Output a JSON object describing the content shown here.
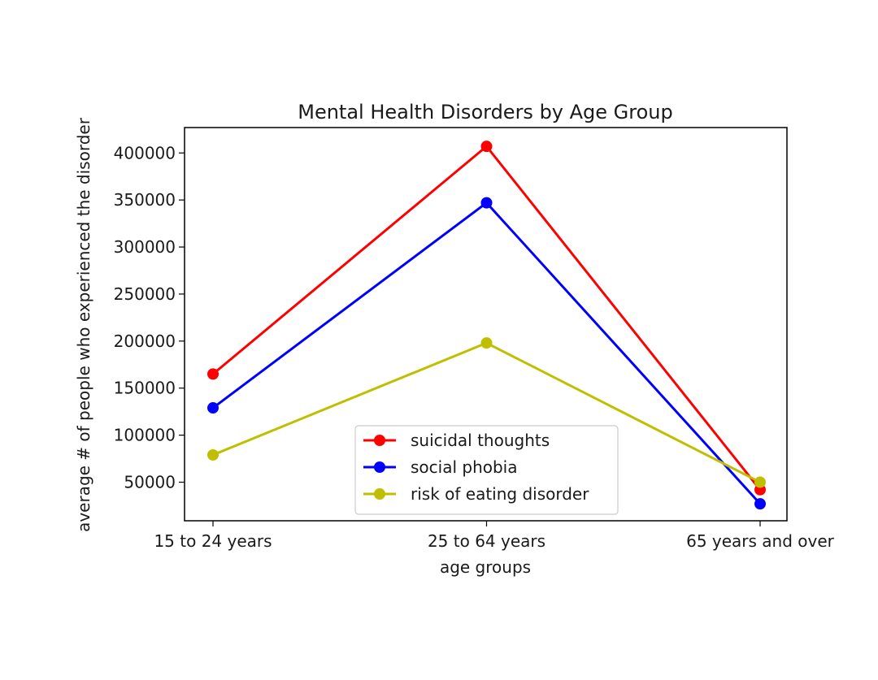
{
  "chart_data": {
    "type": "line",
    "title": "Mental Health Disorders by Age Group",
    "xlabel": "age groups",
    "ylabel": "average # of people who experienced the disorder",
    "categories": [
      "15 to 24 years",
      "25 to 64 years",
      "65 years and over"
    ],
    "ylim": [
      9000,
      427000
    ],
    "yticks": [
      50000,
      100000,
      150000,
      200000,
      250000,
      300000,
      350000,
      400000
    ],
    "ytick_labels": [
      "50000",
      "100000",
      "150000",
      "200000",
      "250000",
      "300000",
      "350000",
      "400000"
    ],
    "grid": false,
    "legend_position": "lower center",
    "series": [
      {
        "name": "suicidal thoughts",
        "color": "#ff0000",
        "values": [
          165000,
          407000,
          42000
        ]
      },
      {
        "name": "social phobia",
        "color": "#0000ff",
        "values": [
          129000,
          347000,
          27000
        ]
      },
      {
        "name": "risk of eating disorder",
        "color": "#bfbf00",
        "values": [
          79000,
          198000,
          50000
        ]
      }
    ]
  }
}
